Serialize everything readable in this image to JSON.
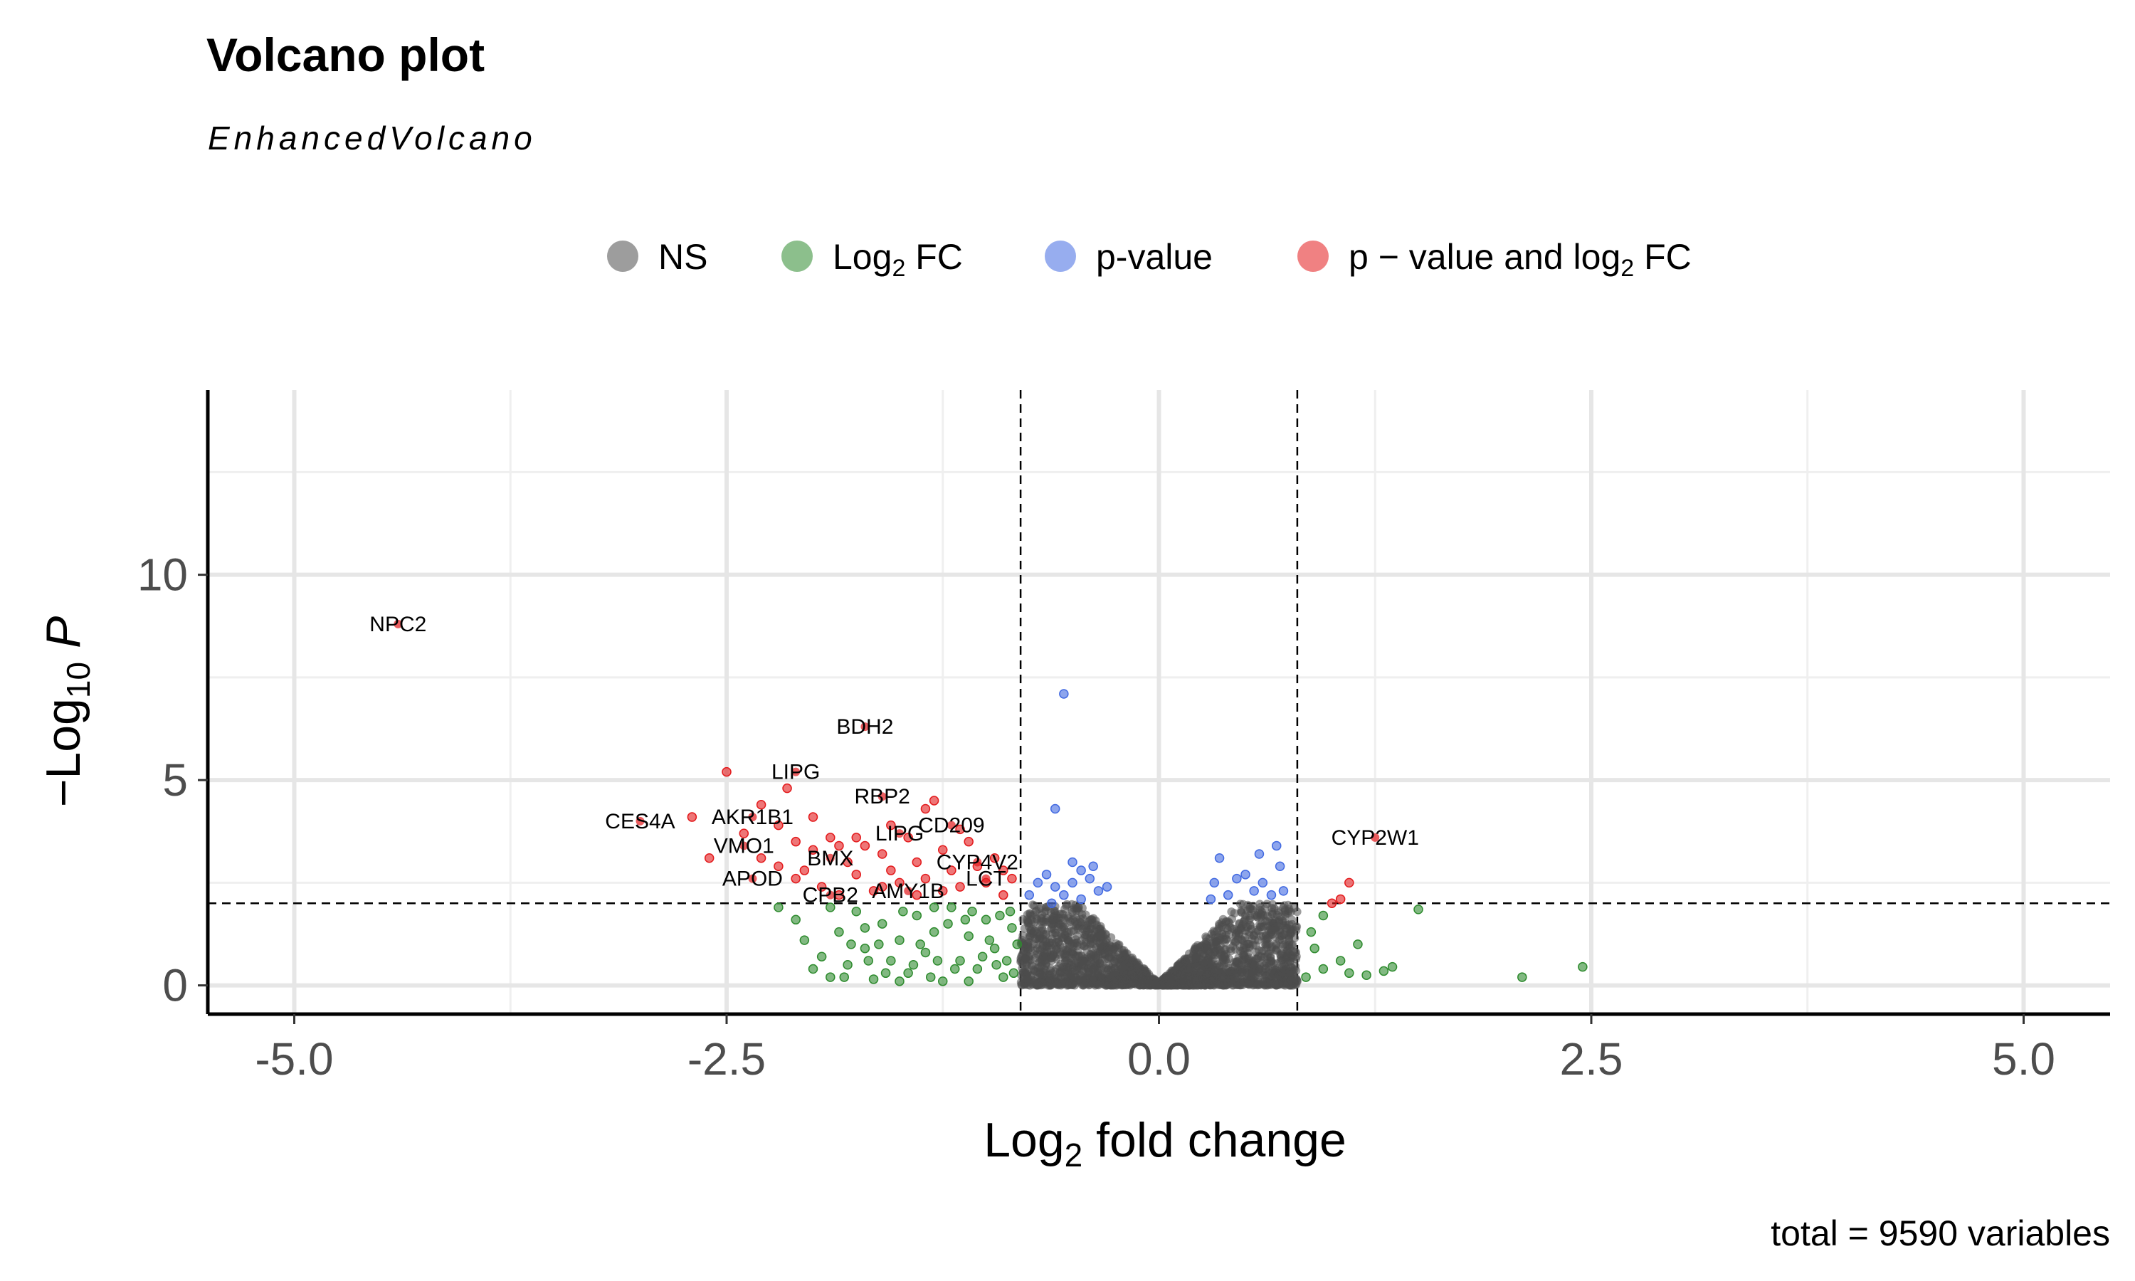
{
  "chart_data": {
    "type": "scatter",
    "title": "Volcano plot",
    "subtitle": "EnhancedVolcano",
    "caption": "total = 9590 variables",
    "xlabel": {
      "main": "Log",
      "sub": "2",
      "rest": " fold change"
    },
    "ylabel": {
      "pre": "−Log",
      "sub": "10",
      "italic": "P"
    },
    "xlim": [
      -5.5,
      5.5
    ],
    "ylim": [
      -0.7,
      14.5
    ],
    "x_ticks": [
      -5.0,
      -2.5,
      0.0,
      2.5,
      5.0
    ],
    "x_tick_labels": [
      "-5.0",
      "-2.5",
      "0.0",
      "2.5",
      "5.0"
    ],
    "y_ticks": [
      0,
      5,
      10
    ],
    "y_tick_labels": [
      "0",
      "5",
      "10"
    ],
    "grid": true,
    "fc_cutoff": 0.8,
    "p_cutoff_neglog10": 2,
    "legend_position": "top",
    "legend": [
      {
        "key": "NS",
        "color": "#4d4d4d",
        "parts": [
          {
            "t": "NS"
          }
        ]
      },
      {
        "key": "FC",
        "color": "#2e8b2e",
        "parts": [
          {
            "t": "Log"
          },
          {
            "t": "2",
            "sub": true
          },
          {
            "t": " FC"
          }
        ]
      },
      {
        "key": "P",
        "color": "#4169e1",
        "parts": [
          {
            "t": "p-value"
          }
        ]
      },
      {
        "key": "BOTH",
        "color": "#e31a1c",
        "parts": [
          {
            "t": "p − value and log"
          },
          {
            "t": "2",
            "sub": true
          },
          {
            "t": " FC"
          }
        ]
      }
    ],
    "colors": {
      "NS": "#4d4d4d",
      "FC": "#2e8b2e",
      "P": "#4169e1",
      "BOTH": "#e31a1c"
    },
    "labeled_points": [
      {
        "label": "NPC2",
        "x": -4.4,
        "y": 8.8
      },
      {
        "label": "BDH2",
        "x": -1.7,
        "y": 6.3
      },
      {
        "label": "LIPG",
        "x": -2.1,
        "y": 5.2
      },
      {
        "label": "RBP2",
        "x": -1.6,
        "y": 4.6
      },
      {
        "label": "AKR1B1",
        "x": -2.35,
        "y": 4.1
      },
      {
        "label": "CES4A",
        "x": -3.0,
        "y": 4.0
      },
      {
        "label": "CD209",
        "x": -1.2,
        "y": 3.9
      },
      {
        "label": "LIPG",
        "x": -1.5,
        "y": 3.7
      },
      {
        "label": "VMO1",
        "x": -2.4,
        "y": 3.4
      },
      {
        "label": "BMX",
        "x": -1.9,
        "y": 3.1
      },
      {
        "label": "CYP4V2",
        "x": -1.05,
        "y": 3.0
      },
      {
        "label": "LCT",
        "x": -1.0,
        "y": 2.6
      },
      {
        "label": "APOD",
        "x": -2.35,
        "y": 2.6
      },
      {
        "label": "AMY1B",
        "x": -1.45,
        "y": 2.3
      },
      {
        "label": "CPB2",
        "x": -1.9,
        "y": 2.2
      },
      {
        "label": "CYP2W1",
        "x": 1.25,
        "y": 3.6
      }
    ],
    "series": [
      {
        "name": "p − value and log2 FC",
        "key": "BOTH",
        "points": [
          [
            -2.5,
            5.2
          ],
          [
            -2.3,
            4.4
          ],
          [
            -2.7,
            4.1
          ],
          [
            -2.4,
            3.7
          ],
          [
            -2.2,
            3.9
          ],
          [
            -2.0,
            4.1
          ],
          [
            -2.1,
            3.5
          ],
          [
            -2.3,
            3.1
          ],
          [
            -2.2,
            2.9
          ],
          [
            -2.0,
            3.3
          ],
          [
            -1.9,
            3.6
          ],
          [
            -1.8,
            3.0
          ],
          [
            -1.75,
            2.7
          ],
          [
            -1.7,
            3.4
          ],
          [
            -1.6,
            3.2
          ],
          [
            -1.55,
            2.8
          ],
          [
            -1.5,
            2.5
          ],
          [
            -1.45,
            3.6
          ],
          [
            -1.4,
            3.0
          ],
          [
            -1.35,
            2.6
          ],
          [
            -1.3,
            4.5
          ],
          [
            -1.25,
            3.3
          ],
          [
            -1.2,
            2.8
          ],
          [
            -1.15,
            2.4
          ],
          [
            -1.1,
            3.5
          ],
          [
            -1.05,
            2.9
          ],
          [
            -1.0,
            2.5
          ],
          [
            -0.95,
            3.1
          ],
          [
            -0.9,
            2.2
          ],
          [
            -0.85,
            2.6
          ],
          [
            -2.6,
            3.1
          ],
          [
            -2.1,
            2.6
          ],
          [
            -1.95,
            2.4
          ],
          [
            -1.85,
            2.2
          ],
          [
            -1.65,
            2.3
          ],
          [
            -1.6,
            2.4
          ],
          [
            -1.4,
            2.2
          ],
          [
            -2.05,
            2.8
          ],
          [
            -1.85,
            3.4
          ],
          [
            -1.25,
            2.3
          ],
          [
            -1.35,
            4.3
          ],
          [
            -2.15,
            4.8
          ],
          [
            1.05,
            2.1
          ],
          [
            1.1,
            2.5
          ],
          [
            1.0,
            2.0
          ],
          [
            -0.9,
            2.8
          ],
          [
            -1.55,
            3.9
          ],
          [
            -1.75,
            3.6
          ],
          [
            -1.15,
            3.8
          ]
        ]
      },
      {
        "name": "p-value",
        "key": "P",
        "points": [
          [
            -0.55,
            7.1
          ],
          [
            -0.6,
            4.3
          ],
          [
            -0.65,
            2.7
          ],
          [
            -0.6,
            2.4
          ],
          [
            -0.55,
            2.2
          ],
          [
            -0.5,
            2.5
          ],
          [
            -0.45,
            2.8
          ],
          [
            -0.4,
            2.6
          ],
          [
            -0.35,
            2.3
          ],
          [
            -0.3,
            2.4
          ],
          [
            -0.7,
            2.5
          ],
          [
            -0.75,
            2.2
          ],
          [
            -0.5,
            3.0
          ],
          [
            -0.45,
            2.1
          ],
          [
            -0.38,
            2.9
          ],
          [
            0.32,
            2.5
          ],
          [
            0.35,
            3.1
          ],
          [
            0.45,
            2.6
          ],
          [
            0.5,
            2.7
          ],
          [
            0.55,
            2.3
          ],
          [
            0.6,
            2.5
          ],
          [
            0.65,
            2.2
          ],
          [
            0.7,
            2.9
          ],
          [
            0.68,
            3.4
          ],
          [
            0.72,
            2.3
          ],
          [
            0.4,
            2.2
          ],
          [
            0.58,
            3.2
          ],
          [
            -0.62,
            2.0
          ],
          [
            0.3,
            2.1
          ]
        ]
      },
      {
        "name": "Log2 FC",
        "key": "FC",
        "points": [
          [
            2.45,
            0.45
          ],
          [
            2.1,
            0.2
          ],
          [
            1.5,
            1.85
          ],
          [
            1.35,
            0.45
          ],
          [
            1.3,
            0.35
          ],
          [
            1.2,
            0.25
          ],
          [
            1.1,
            0.3
          ],
          [
            1.05,
            0.6
          ],
          [
            0.95,
            0.4
          ],
          [
            0.9,
            0.9
          ],
          [
            0.85,
            0.2
          ],
          [
            1.15,
            1.0
          ],
          [
            0.95,
            1.7
          ],
          [
            0.88,
            1.3
          ],
          [
            -2.1,
            1.6
          ],
          [
            -2.05,
            1.1
          ],
          [
            -1.95,
            0.7
          ],
          [
            -1.9,
            0.2
          ],
          [
            -1.85,
            1.3
          ],
          [
            -1.8,
            0.5
          ],
          [
            -1.75,
            1.8
          ],
          [
            -1.7,
            0.9
          ],
          [
            -1.65,
            0.15
          ],
          [
            -1.6,
            1.5
          ],
          [
            -1.55,
            0.6
          ],
          [
            -1.5,
            1.1
          ],
          [
            -1.45,
            0.3
          ],
          [
            -1.4,
            1.7
          ],
          [
            -1.35,
            0.8
          ],
          [
            -1.3,
            1.3
          ],
          [
            -1.25,
            0.1
          ],
          [
            -1.2,
            1.9
          ],
          [
            -1.15,
            0.6
          ],
          [
            -1.1,
            1.2
          ],
          [
            -1.05,
            0.4
          ],
          [
            -1.0,
            1.6
          ],
          [
            -0.95,
            0.9
          ],
          [
            -0.9,
            0.2
          ],
          [
            -0.85,
            1.4
          ],
          [
            -2.2,
            1.9
          ],
          [
            -2.0,
            0.4
          ],
          [
            -1.78,
            1.0
          ],
          [
            -1.58,
            0.3
          ],
          [
            -1.38,
            1.0
          ],
          [
            -1.18,
            0.4
          ],
          [
            -0.98,
            1.1
          ],
          [
            -0.88,
            0.6
          ],
          [
            -1.68,
            0.6
          ],
          [
            -1.48,
            1.8
          ],
          [
            -1.28,
            0.6
          ],
          [
            -1.08,
            1.8
          ],
          [
            -0.92,
            1.7
          ],
          [
            -0.82,
            1.0
          ],
          [
            -1.9,
            1.9
          ],
          [
            -1.7,
            1.4
          ],
          [
            -1.5,
            0.1
          ],
          [
            -1.3,
            1.9
          ],
          [
            -1.1,
            0.1
          ],
          [
            -1.62,
            1.0
          ],
          [
            -1.42,
            0.5
          ],
          [
            -1.22,
            1.5
          ],
          [
            -1.02,
            0.7
          ],
          [
            -0.94,
            0.5
          ],
          [
            -0.84,
            0.3
          ],
          [
            -1.82,
            0.2
          ],
          [
            -1.12,
            1.6
          ],
          [
            -1.32,
            0.2
          ],
          [
            -0.86,
            1.8
          ]
        ]
      }
    ],
    "ns_cloud": {
      "count": 2200,
      "x_range": [
        -0.8,
        0.8
      ],
      "y_max": 1.99
    }
  }
}
